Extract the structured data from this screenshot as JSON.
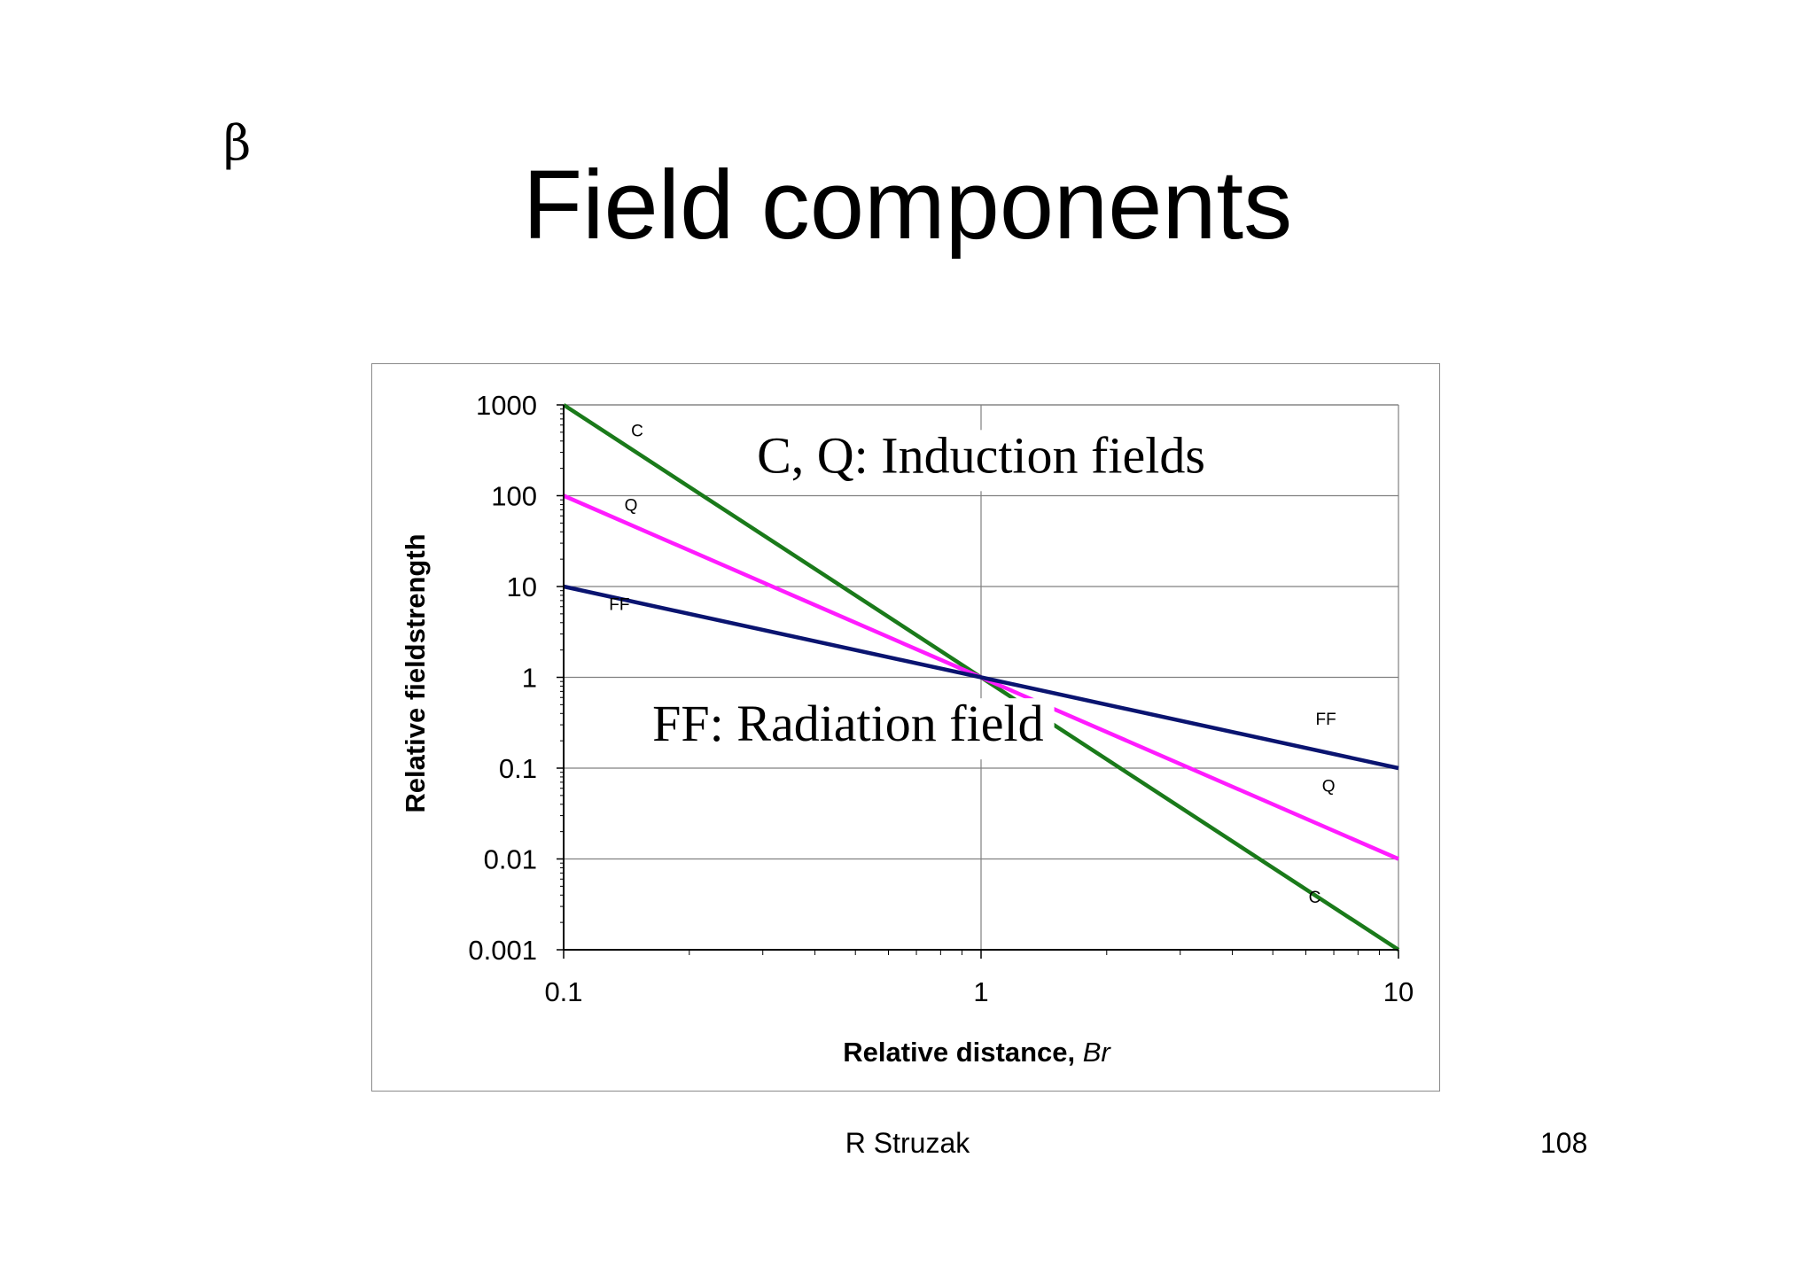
{
  "slide": {
    "symbol": "β",
    "title": "Field components",
    "author": "R Struzak",
    "page_number": "108"
  },
  "chart_data": {
    "type": "line",
    "title": "",
    "xlabel": "Relative distance, ",
    "xlabel_italic": "Br",
    "ylabel": "Relative fieldstrength",
    "xscale": "log",
    "yscale": "log",
    "xlim": [
      0.1,
      10
    ],
    "ylim": [
      0.001,
      1000
    ],
    "x_ticks": [
      {
        "value": 0.1,
        "label": "0.1"
      },
      {
        "value": 1,
        "label": "1"
      },
      {
        "value": 10,
        "label": "10"
      }
    ],
    "y_ticks": [
      {
        "value": 1000,
        "label": "1000"
      },
      {
        "value": 100,
        "label": "100"
      },
      {
        "value": 10,
        "label": "10"
      },
      {
        "value": 1,
        "label": "1"
      },
      {
        "value": 0.1,
        "label": "0.1"
      },
      {
        "value": 0.01,
        "label": "0.01"
      },
      {
        "value": 0.001,
        "label": "0.001"
      }
    ],
    "grid": true,
    "series": [
      {
        "name": "C",
        "color": "#1a7a1a",
        "x": [
          0.1,
          1,
          10
        ],
        "y": [
          1000,
          1,
          0.001
        ],
        "labels": [
          {
            "text": "C",
            "x": 0.15,
            "y": 450
          },
          {
            "text": "C",
            "x": 6.3,
            "y": 0.0033
          }
        ]
      },
      {
        "name": "Q",
        "color": "#ff1cff",
        "x": [
          0.1,
          1,
          10
        ],
        "y": [
          100,
          1,
          0.01
        ],
        "labels": [
          {
            "text": "Q",
            "x": 0.145,
            "y": 68
          },
          {
            "text": "Q",
            "x": 6.8,
            "y": 0.055
          }
        ]
      },
      {
        "name": "FF",
        "color": "#0a1470",
        "x": [
          0.1,
          1,
          10
        ],
        "y": [
          10,
          1,
          0.1
        ],
        "labels": [
          {
            "text": "FF",
            "x": 0.136,
            "y": 5.5
          },
          {
            "text": "FF",
            "x": 6.7,
            "y": 0.3
          }
        ]
      }
    ],
    "annotations": [
      {
        "text": "C, Q: Induction fields",
        "x": 1.0,
        "y": 180
      },
      {
        "text": "FF: Radiation field",
        "x": 0.48,
        "y": 0.2
      }
    ]
  }
}
